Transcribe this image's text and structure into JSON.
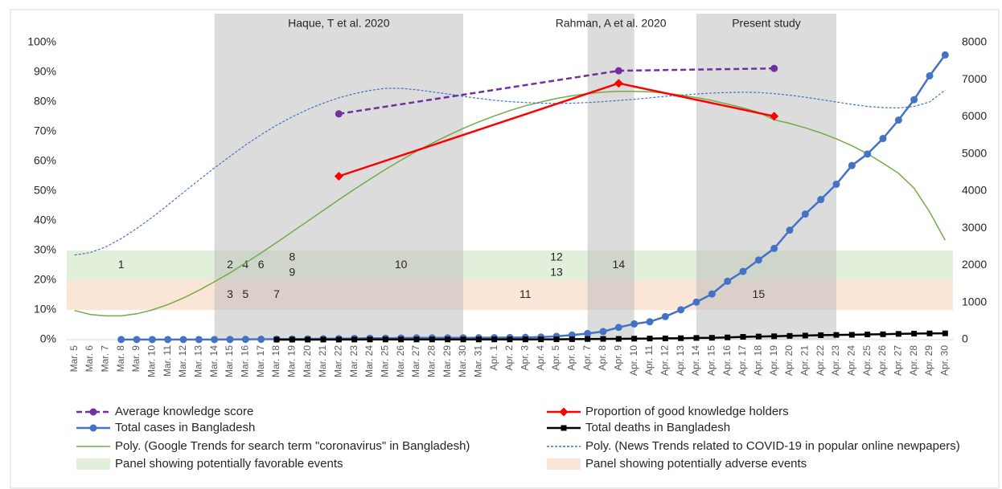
{
  "chart_data": {
    "type": "line",
    "categories": [
      "Mar. 5",
      "Mar. 6",
      "Mar. 7",
      "Mar. 8",
      "Mar. 9",
      "Mar. 10",
      "Mar. 11",
      "Mar. 12",
      "Mar. 13",
      "Mar. 14",
      "Mar. 15",
      "Mar. 16",
      "Mar. 17",
      "Mar. 18",
      "Mar. 19",
      "Mar. 20",
      "Mar. 21",
      "Mar. 22",
      "Mar. 23",
      "Mar. 24",
      "Mar. 25",
      "Mar. 26",
      "Mar. 27",
      "Mar. 28",
      "Mar. 29",
      "Mar. 30",
      "Mar. 31",
      "Apr. 1",
      "Apr. 2",
      "Apr. 3",
      "Apr. 4",
      "Apr. 5",
      "Apr. 6",
      "Apr. 7",
      "Apr. 8",
      "Apr. 9",
      "Apr. 10",
      "Apr. 11",
      "Apr. 12",
      "Apr. 13",
      "Apr. 14",
      "Apr. 15",
      "Apr. 16",
      "Apr. 17",
      "Apr. 18",
      "Apr. 19",
      "Apr. 20",
      "Apr. 21",
      "Apr. 22",
      "Apr. 23",
      "Apr. 24",
      "Apr. 25",
      "Apr. 26",
      "Apr. 27",
      "Apr. 28",
      "Apr. 29",
      "Apr. 30"
    ],
    "ylim": [
      0,
      100
    ],
    "yticks": [
      {
        "value": 0,
        "label": "0%"
      },
      {
        "value": 10,
        "label": "10%"
      },
      {
        "value": 20,
        "label": "20%"
      },
      {
        "value": 30,
        "label": "30%"
      },
      {
        "value": 40,
        "label": "40%"
      },
      {
        "value": 50,
        "label": "50%"
      },
      {
        "value": 60,
        "label": "60%"
      },
      {
        "value": 70,
        "label": "70%"
      },
      {
        "value": 80,
        "label": "80%"
      },
      {
        "value": 90,
        "label": "90%"
      },
      {
        "value": 100,
        "label": "100%"
      }
    ],
    "y2lim": [
      0,
      8000
    ],
    "y2ticks": [
      0,
      1000,
      2000,
      3000,
      4000,
      5000,
      6000,
      7000,
      8000
    ],
    "periods": [
      {
        "label": "Haque, T et al. 2020",
        "start": "Mar. 14",
        "end": "Mar. 30"
      },
      {
        "label": "Rahman, A et al. 2020",
        "start": "Apr. 7",
        "end": "Apr. 10"
      },
      {
        "label": "Present study",
        "start": "Apr. 14",
        "end": "Apr. 23"
      }
    ],
    "bands": [
      {
        "name": "Panel showing potentially favorable events",
        "from": 20,
        "to": 30,
        "color": "#e2efda",
        "events": [
          {
            "label": "1",
            "category": "Mar. 8"
          },
          {
            "label": "2",
            "category": "Mar. 15"
          },
          {
            "label": "4",
            "category": "Mar. 16"
          },
          {
            "label": "6",
            "category": "Mar. 17"
          },
          {
            "label": "8",
            "category": "Mar. 19"
          },
          {
            "label": "9",
            "category": "Mar. 19"
          },
          {
            "label": "10",
            "category": "Mar. 26"
          },
          {
            "label": "12",
            "category": "Apr. 5"
          },
          {
            "label": "13",
            "category": "Apr. 5"
          },
          {
            "label": "14",
            "category": "Apr. 9"
          }
        ]
      },
      {
        "name": "Panel showing potentially adverse events",
        "from": 10,
        "to": 20,
        "color": "#fbe5d6",
        "events": [
          {
            "label": "3",
            "category": "Mar. 15"
          },
          {
            "label": "5",
            "category": "Mar. 16"
          },
          {
            "label": "7",
            "category": "Mar. 18"
          },
          {
            "label": "11",
            "category": "Apr. 3"
          },
          {
            "label": "15",
            "category": "Apr. 18"
          }
        ]
      }
    ],
    "series": [
      {
        "name": "Average knowledge score",
        "color": "#7030a0",
        "dashed": true,
        "marker": "circle",
        "x": [
          "Mar. 22",
          "Apr. 9",
          "Apr. 19"
        ],
        "values": [
          76,
          90.5,
          91.3
        ]
      },
      {
        "name": "Proportion of good knowledge holders",
        "color": "#ff0000",
        "dashed": false,
        "marker": "diamond",
        "x": [
          "Mar. 22",
          "Apr. 9",
          "Apr. 19"
        ],
        "values": [
          55,
          86.3,
          75.2
        ]
      },
      {
        "name": "Total cases in Bangladesh",
        "color": "#4472c4",
        "dashed": false,
        "marker": "circle",
        "axis": "y2",
        "values": [
          null,
          null,
          null,
          3,
          3,
          3,
          3,
          3,
          3,
          3,
          5,
          8,
          10,
          14,
          17,
          20,
          24,
          27,
          33,
          39,
          39,
          44,
          48,
          48,
          48,
          49,
          51,
          54,
          56,
          61,
          70,
          88,
          123,
          164,
          218,
          330,
          424,
          482,
          621,
          803,
          1012,
          1231,
          1572,
          1838,
          2144,
          2456,
          2948,
          3382,
          3772,
          4186,
          4689,
          4998,
          5416,
          5913,
          6462,
          7103,
          7667
        ]
      },
      {
        "name": "Total deaths in Bangladesh",
        "color": "#000000",
        "dashed": false,
        "marker": "square",
        "axis": "y2",
        "values": [
          null,
          null,
          null,
          null,
          null,
          null,
          null,
          null,
          null,
          null,
          null,
          null,
          null,
          1,
          1,
          1,
          2,
          2,
          3,
          4,
          5,
          5,
          5,
          5,
          5,
          5,
          5,
          6,
          6,
          6,
          8,
          9,
          12,
          17,
          20,
          21,
          27,
          30,
          34,
          39,
          46,
          50,
          60,
          75,
          84,
          91,
          101,
          110,
          120,
          127,
          131,
          140,
          145,
          155,
          163,
          168,
          170
        ]
      }
    ],
    "trendlines": [
      {
        "name": "Poly. (Google Trends for search term \"coronavirus\" in Bangladesh)",
        "color": "#70ad47",
        "dashed": false,
        "values": [
          9.8,
          8.5,
          8,
          8,
          8.7,
          10,
          11.8,
          14,
          16.6,
          19.5,
          22.5,
          25.8,
          29.2,
          32.7,
          36.3,
          39.9,
          43.5,
          47.1,
          50.6,
          54,
          57.3,
          60.4,
          63.4,
          66.1,
          68.7,
          71.1,
          73.3,
          75.3,
          77.1,
          78.7,
          80,
          81.2,
          82.1,
          82.8,
          83.3,
          83.6,
          83.6,
          83.4,
          83,
          82.3,
          81.5,
          80.5,
          79.3,
          78,
          76.5,
          74,
          72.8,
          71.3,
          69.6,
          67.6,
          65.3,
          62.6,
          59.4,
          56,
          51,
          43,
          33.5
        ]
      },
      {
        "name": "Poly. (News Trends related to COVID-19 in popular online newpapers)",
        "color": "#4472c4",
        "dashed": true,
        "values": [
          28.5,
          29.3,
          31.2,
          34,
          37.4,
          41.2,
          45.3,
          49.5,
          53.7,
          57.8,
          61.7,
          65.5,
          69,
          72.2,
          75,
          77.5,
          79.6,
          81.4,
          82.8,
          83.9,
          84.6,
          84.6,
          84.1,
          83.4,
          82.7,
          81.9,
          81.2,
          80.6,
          80.1,
          79.8,
          79.6,
          79.5,
          79.6,
          79.8,
          80.1,
          80.5,
          80.9,
          81.4,
          81.9,
          82.3,
          82.7,
          83,
          83.2,
          83.3,
          83.2,
          82.8,
          82.3,
          81.6,
          80.8,
          80,
          79.2,
          78.5,
          78.1,
          78,
          78.5,
          80,
          84
        ]
      }
    ]
  }
}
